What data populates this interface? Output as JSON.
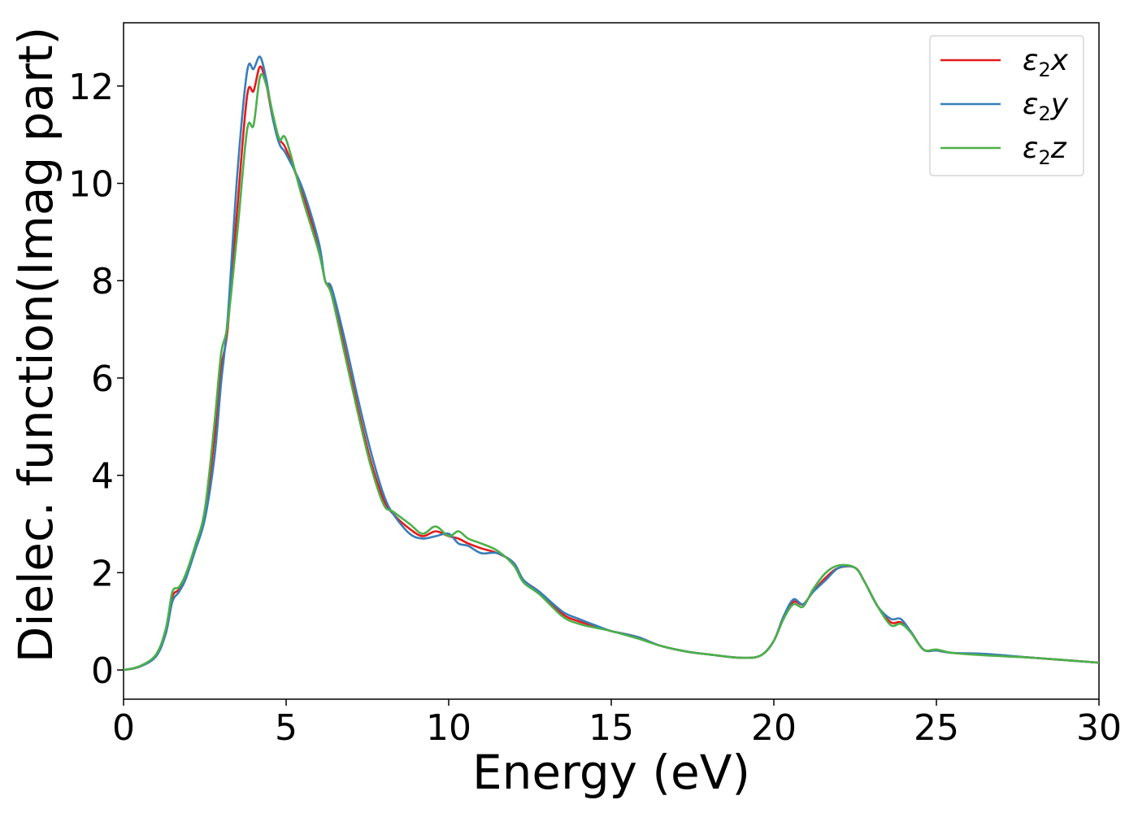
{
  "chart_data": {
    "type": "line",
    "xlabel": "Energy (eV)",
    "ylabel": "Dielec. function(Imag part)",
    "xlim": [
      0,
      30
    ],
    "ylim": [
      -0.6,
      13.3
    ],
    "xticks": [
      0,
      5,
      10,
      15,
      20,
      25,
      30
    ],
    "yticks": [
      0,
      2,
      4,
      6,
      8,
      10,
      12
    ],
    "grid": false,
    "legend_position": "top-right",
    "series": [
      {
        "name": "ε2x",
        "legend_main": "ε",
        "legend_sub": "2",
        "legend_var": "x",
        "color": "#e41a1c",
        "points": [
          [
            0,
            0
          ],
          [
            0.5,
            0.07
          ],
          [
            1.0,
            0.3
          ],
          [
            1.3,
            0.8
          ],
          [
            1.5,
            1.5
          ],
          [
            1.7,
            1.65
          ],
          [
            1.9,
            1.9
          ],
          [
            2.2,
            2.5
          ],
          [
            2.5,
            3.2
          ],
          [
            2.8,
            4.8
          ],
          [
            3.0,
            6.2
          ],
          [
            3.2,
            7.0
          ],
          [
            3.5,
            9.5
          ],
          [
            3.8,
            11.8
          ],
          [
            4.0,
            11.9
          ],
          [
            4.2,
            12.4
          ],
          [
            4.4,
            12.0
          ],
          [
            4.6,
            11.3
          ],
          [
            4.8,
            10.9
          ],
          [
            5.0,
            10.7
          ],
          [
            5.5,
            9.8
          ],
          [
            6.0,
            8.7
          ],
          [
            6.2,
            8.0
          ],
          [
            6.4,
            7.8
          ],
          [
            6.8,
            6.6
          ],
          [
            7.2,
            5.4
          ],
          [
            7.6,
            4.3
          ],
          [
            8.0,
            3.5
          ],
          [
            8.3,
            3.2
          ],
          [
            8.8,
            2.9
          ],
          [
            9.2,
            2.75
          ],
          [
            9.6,
            2.85
          ],
          [
            10.0,
            2.75
          ],
          [
            10.3,
            2.7
          ],
          [
            10.6,
            2.6
          ],
          [
            11.0,
            2.5
          ],
          [
            11.5,
            2.4
          ],
          [
            12.0,
            2.2
          ],
          [
            12.3,
            1.85
          ],
          [
            12.8,
            1.6
          ],
          [
            13.5,
            1.15
          ],
          [
            14.0,
            1.0
          ],
          [
            14.5,
            0.9
          ],
          [
            15.0,
            0.8
          ],
          [
            15.8,
            0.68
          ],
          [
            16.5,
            0.5
          ],
          [
            17.3,
            0.38
          ],
          [
            18.0,
            0.32
          ],
          [
            19.0,
            0.25
          ],
          [
            19.6,
            0.3
          ],
          [
            20.0,
            0.6
          ],
          [
            20.3,
            1.1
          ],
          [
            20.6,
            1.4
          ],
          [
            20.9,
            1.35
          ],
          [
            21.2,
            1.6
          ],
          [
            21.6,
            1.9
          ],
          [
            22.0,
            2.1
          ],
          [
            22.5,
            2.1
          ],
          [
            22.8,
            1.8
          ],
          [
            23.2,
            1.3
          ],
          [
            23.6,
            0.98
          ],
          [
            23.9,
            0.98
          ],
          [
            24.2,
            0.8
          ],
          [
            24.6,
            0.42
          ],
          [
            25.0,
            0.4
          ],
          [
            25.5,
            0.35
          ],
          [
            26.5,
            0.32
          ],
          [
            28.0,
            0.25
          ],
          [
            30.0,
            0.15
          ]
        ]
      },
      {
        "name": "ε2y",
        "legend_main": "ε",
        "legend_sub": "2",
        "legend_var": "y",
        "color": "#377eb8",
        "points": [
          [
            0,
            0
          ],
          [
            0.5,
            0.07
          ],
          [
            1.0,
            0.28
          ],
          [
            1.3,
            0.75
          ],
          [
            1.5,
            1.4
          ],
          [
            1.7,
            1.6
          ],
          [
            1.9,
            1.85
          ],
          [
            2.2,
            2.45
          ],
          [
            2.5,
            3.1
          ],
          [
            2.8,
            4.4
          ],
          [
            3.0,
            5.9
          ],
          [
            3.2,
            7.2
          ],
          [
            3.5,
            10.2
          ],
          [
            3.8,
            12.3
          ],
          [
            4.0,
            12.35
          ],
          [
            4.2,
            12.6
          ],
          [
            4.4,
            12.1
          ],
          [
            4.6,
            11.3
          ],
          [
            4.8,
            10.8
          ],
          [
            5.0,
            10.6
          ],
          [
            5.5,
            9.9
          ],
          [
            6.0,
            8.8
          ],
          [
            6.2,
            8.0
          ],
          [
            6.4,
            7.85
          ],
          [
            6.8,
            6.8
          ],
          [
            7.2,
            5.6
          ],
          [
            7.6,
            4.5
          ],
          [
            8.0,
            3.6
          ],
          [
            8.3,
            3.2
          ],
          [
            8.8,
            2.8
          ],
          [
            9.2,
            2.7
          ],
          [
            9.6,
            2.75
          ],
          [
            10.0,
            2.8
          ],
          [
            10.3,
            2.6
          ],
          [
            10.6,
            2.55
          ],
          [
            11.0,
            2.4
          ],
          [
            11.5,
            2.4
          ],
          [
            12.0,
            2.2
          ],
          [
            12.3,
            1.85
          ],
          [
            12.8,
            1.6
          ],
          [
            13.5,
            1.2
          ],
          [
            14.0,
            1.05
          ],
          [
            14.5,
            0.92
          ],
          [
            15.0,
            0.8
          ],
          [
            15.8,
            0.68
          ],
          [
            16.5,
            0.5
          ],
          [
            17.3,
            0.38
          ],
          [
            18.0,
            0.32
          ],
          [
            19.0,
            0.25
          ],
          [
            19.6,
            0.3
          ],
          [
            20.0,
            0.6
          ],
          [
            20.3,
            1.1
          ],
          [
            20.6,
            1.45
          ],
          [
            20.9,
            1.35
          ],
          [
            21.2,
            1.6
          ],
          [
            21.6,
            1.85
          ],
          [
            22.0,
            2.1
          ],
          [
            22.5,
            2.1
          ],
          [
            22.8,
            1.8
          ],
          [
            23.2,
            1.3
          ],
          [
            23.6,
            1.05
          ],
          [
            23.9,
            1.05
          ],
          [
            24.2,
            0.8
          ],
          [
            24.6,
            0.42
          ],
          [
            25.0,
            0.4
          ],
          [
            25.5,
            0.35
          ],
          [
            26.5,
            0.33
          ],
          [
            28.0,
            0.25
          ],
          [
            30.0,
            0.15
          ]
        ]
      },
      {
        "name": "ε2z",
        "legend_main": "ε",
        "legend_sub": "2",
        "legend_var": "z",
        "color": "#4daf4a",
        "points": [
          [
            0,
            0
          ],
          [
            0.5,
            0.08
          ],
          [
            1.0,
            0.32
          ],
          [
            1.3,
            0.85
          ],
          [
            1.5,
            1.6
          ],
          [
            1.7,
            1.7
          ],
          [
            1.9,
            1.95
          ],
          [
            2.2,
            2.55
          ],
          [
            2.5,
            3.3
          ],
          [
            2.8,
            5.1
          ],
          [
            3.0,
            6.5
          ],
          [
            3.2,
            7.1
          ],
          [
            3.5,
            9.0
          ],
          [
            3.8,
            11.1
          ],
          [
            4.0,
            11.2
          ],
          [
            4.2,
            12.2
          ],
          [
            4.4,
            12.0
          ],
          [
            4.6,
            11.4
          ],
          [
            4.8,
            10.9
          ],
          [
            5.0,
            10.9
          ],
          [
            5.5,
            9.7
          ],
          [
            6.0,
            8.6
          ],
          [
            6.2,
            8.0
          ],
          [
            6.4,
            7.7
          ],
          [
            6.8,
            6.5
          ],
          [
            7.2,
            5.3
          ],
          [
            7.6,
            4.2
          ],
          [
            8.0,
            3.4
          ],
          [
            8.3,
            3.25
          ],
          [
            8.8,
            3.0
          ],
          [
            9.2,
            2.8
          ],
          [
            9.6,
            2.95
          ],
          [
            10.0,
            2.75
          ],
          [
            10.3,
            2.85
          ],
          [
            10.6,
            2.7
          ],
          [
            11.0,
            2.6
          ],
          [
            11.5,
            2.45
          ],
          [
            12.0,
            2.15
          ],
          [
            12.3,
            1.8
          ],
          [
            12.8,
            1.55
          ],
          [
            13.5,
            1.1
          ],
          [
            14.0,
            0.95
          ],
          [
            14.5,
            0.87
          ],
          [
            15.0,
            0.8
          ],
          [
            15.8,
            0.65
          ],
          [
            16.5,
            0.5
          ],
          [
            17.3,
            0.38
          ],
          [
            18.0,
            0.32
          ],
          [
            19.0,
            0.25
          ],
          [
            19.6,
            0.3
          ],
          [
            20.0,
            0.6
          ],
          [
            20.3,
            1.05
          ],
          [
            20.6,
            1.35
          ],
          [
            20.9,
            1.3
          ],
          [
            21.2,
            1.65
          ],
          [
            21.6,
            2.0
          ],
          [
            22.0,
            2.15
          ],
          [
            22.5,
            2.1
          ],
          [
            22.8,
            1.8
          ],
          [
            23.2,
            1.3
          ],
          [
            23.6,
            0.92
          ],
          [
            23.9,
            0.95
          ],
          [
            24.2,
            0.78
          ],
          [
            24.6,
            0.42
          ],
          [
            25.0,
            0.42
          ],
          [
            25.5,
            0.35
          ],
          [
            26.5,
            0.3
          ],
          [
            28.0,
            0.25
          ],
          [
            30.0,
            0.15
          ]
        ]
      }
    ]
  }
}
